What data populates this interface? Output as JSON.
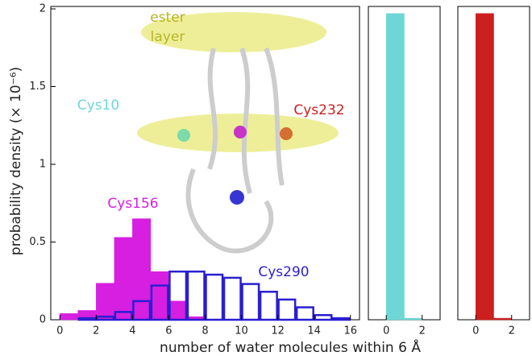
{
  "chart_data": [
    {
      "type": "histogram",
      "ylabel": "probability density (× 10⁻⁶)",
      "xlabel": "number of water molecules within 6 Å",
      "bins": [
        0,
        1,
        2,
        3,
        4,
        5,
        6,
        7,
        8,
        9,
        10,
        11,
        12,
        13,
        14,
        15,
        16
      ],
      "xlim": [
        -0.5,
        16.5
      ],
      "xticks": [
        0,
        2,
        4,
        6,
        8,
        10,
        12,
        14,
        16
      ],
      "ylim": [
        0,
        2
      ],
      "yticks": [
        0,
        0.5,
        1,
        1.5,
        2
      ],
      "series": [
        {
          "name": "Cys156",
          "color": "#d61fe0",
          "filled": true,
          "values": [
            0.04,
            0.06,
            0.235,
            0.53,
            0.65,
            0.31,
            0.12,
            0.02,
            0,
            0,
            0,
            0,
            0,
            0,
            0,
            0
          ]
        },
        {
          "name": "Cys290",
          "color": "#2a1fd0",
          "filled": false,
          "values": [
            0,
            0.01,
            0.02,
            0.05,
            0.12,
            0.22,
            0.31,
            0.31,
            0.29,
            0.27,
            0.23,
            0.18,
            0.13,
            0.08,
            0.03,
            0.01
          ]
        }
      ],
      "annotations": [
        {
          "text": "ester",
          "color": "#b5b52a"
        },
        {
          "text": "layer",
          "color": "#b5b52a"
        }
      ]
    },
    {
      "type": "histogram",
      "bins": [
        0,
        1,
        2
      ],
      "xlim": [
        -1,
        3
      ],
      "xticks": [
        0,
        2
      ],
      "ylim": [
        0,
        2
      ],
      "series": [
        {
          "name": "Cys10",
          "color": "#6fd6d6",
          "filled": true,
          "values": [
            1.97,
            0.01
          ]
        }
      ]
    },
    {
      "type": "histogram",
      "bins": [
        0,
        1,
        2
      ],
      "xlim": [
        -1,
        3
      ],
      "xticks": [
        0,
        2
      ],
      "ylim": [
        0,
        2
      ],
      "series": [
        {
          "name": "Cys232",
          "color": "#cc1f1f",
          "filled": true,
          "values": [
            1.97,
            0.01
          ]
        }
      ]
    }
  ]
}
